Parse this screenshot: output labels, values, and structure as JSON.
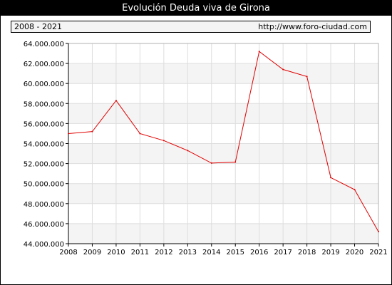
{
  "header": {
    "title": "Evolución Deuda viva de Girona",
    "range": "2008 - 2021",
    "url": "http://www.foro-ciudad.com"
  },
  "colors": {
    "line": "#e00000",
    "band": "#f4f4f4",
    "grid": "#dddddd",
    "axis": "#000000"
  },
  "chart_data": {
    "type": "line",
    "title": "Evolución Deuda viva de Girona",
    "xlabel": "",
    "ylabel": "",
    "x": [
      2008,
      2009,
      2010,
      2011,
      2012,
      2013,
      2014,
      2015,
      2016,
      2017,
      2018,
      2019,
      2020,
      2021
    ],
    "series": [
      {
        "values": [
          55000000,
          55200000,
          58300000,
          55000000,
          54300000,
          53300000,
          52050000,
          52150000,
          63200000,
          61400000,
          60700000,
          50600000,
          49400000,
          45200000
        ]
      }
    ],
    "ylim": [
      44000000,
      64000000
    ],
    "yticks": [
      44000000,
      46000000,
      48000000,
      50000000,
      52000000,
      54000000,
      56000000,
      58000000,
      60000000,
      62000000,
      64000000
    ],
    "ytick_labels": [
      "44.000.000",
      "46.000.000",
      "48.000.000",
      "50.000.000",
      "52.000.000",
      "54.000.000",
      "56.000.000",
      "58.000.000",
      "60.000.000",
      "62.000.000",
      "64.000.000"
    ],
    "xtick_labels": [
      "2008",
      "2009",
      "2010",
      "2011",
      "2012",
      "2013",
      "2014",
      "2015",
      "2016",
      "2017",
      "2018",
      "2019",
      "2020",
      "2021"
    ],
    "grid": true
  }
}
